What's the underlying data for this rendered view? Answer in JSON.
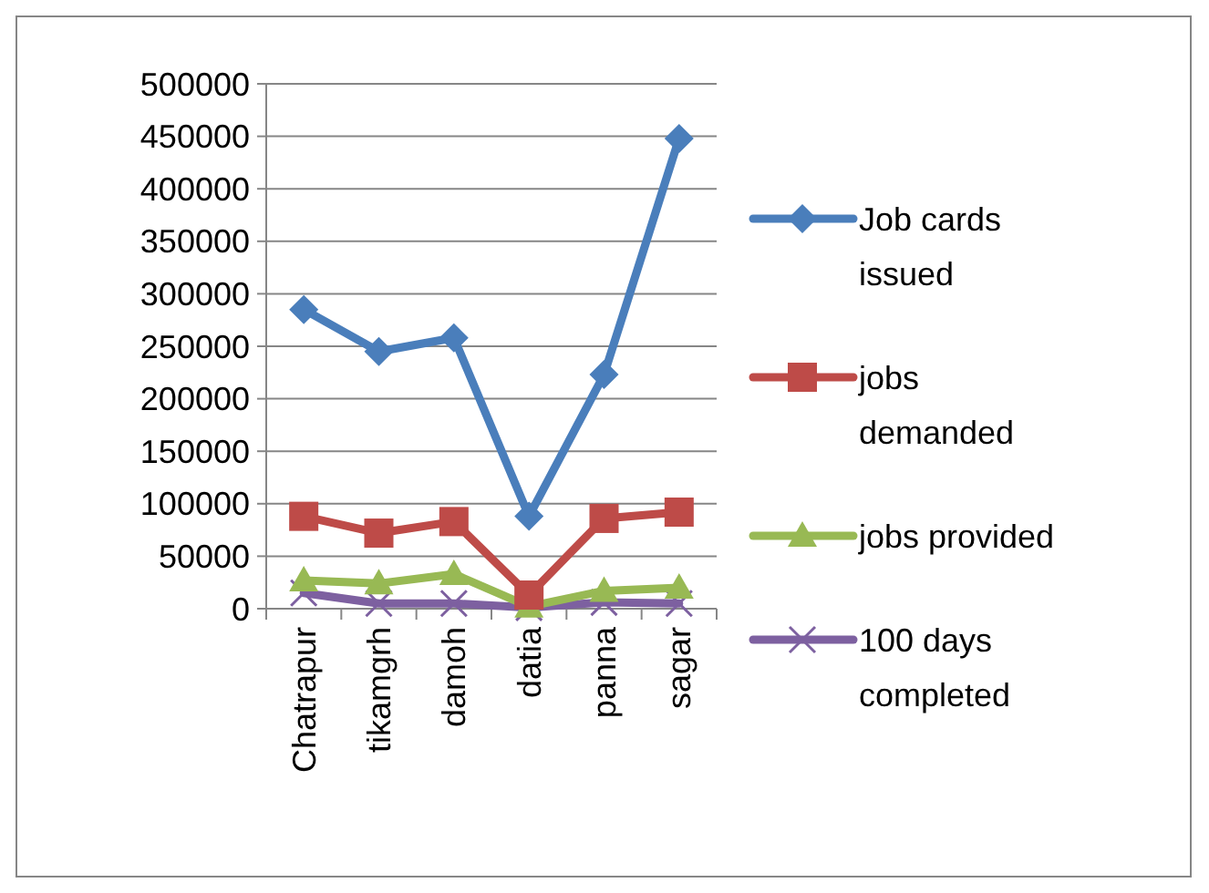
{
  "chart_data": {
    "type": "line",
    "categories": [
      "Chatrapur",
      "tikamgrh",
      "damoh",
      "datia",
      "panna",
      "sagar"
    ],
    "series": [
      {
        "name": "Job cards issued",
        "color": "#4a7ebb",
        "marker": "diamond",
        "values": [
          285000,
          245000,
          258000,
          88000,
          223000,
          448000
        ]
      },
      {
        "name": "jobs demanded",
        "color": "#be4b48",
        "marker": "square",
        "values": [
          88000,
          72000,
          83000,
          13000,
          86000,
          92000
        ]
      },
      {
        "name": "jobs provided",
        "color": "#98b954",
        "marker": "triangle",
        "values": [
          27000,
          24000,
          33000,
          2000,
          17000,
          20000
        ]
      },
      {
        "name": "100 days completed",
        "color": "#7d60a0",
        "marker": "cross",
        "values": [
          15000,
          5000,
          5000,
          1000,
          6000,
          5000
        ]
      }
    ],
    "ylim": [
      0,
      500000
    ],
    "yticks": [
      0,
      50000,
      100000,
      150000,
      200000,
      250000,
      300000,
      350000,
      400000,
      450000,
      500000
    ],
    "grid": "y",
    "legend": "right",
    "line_style": "solid"
  }
}
